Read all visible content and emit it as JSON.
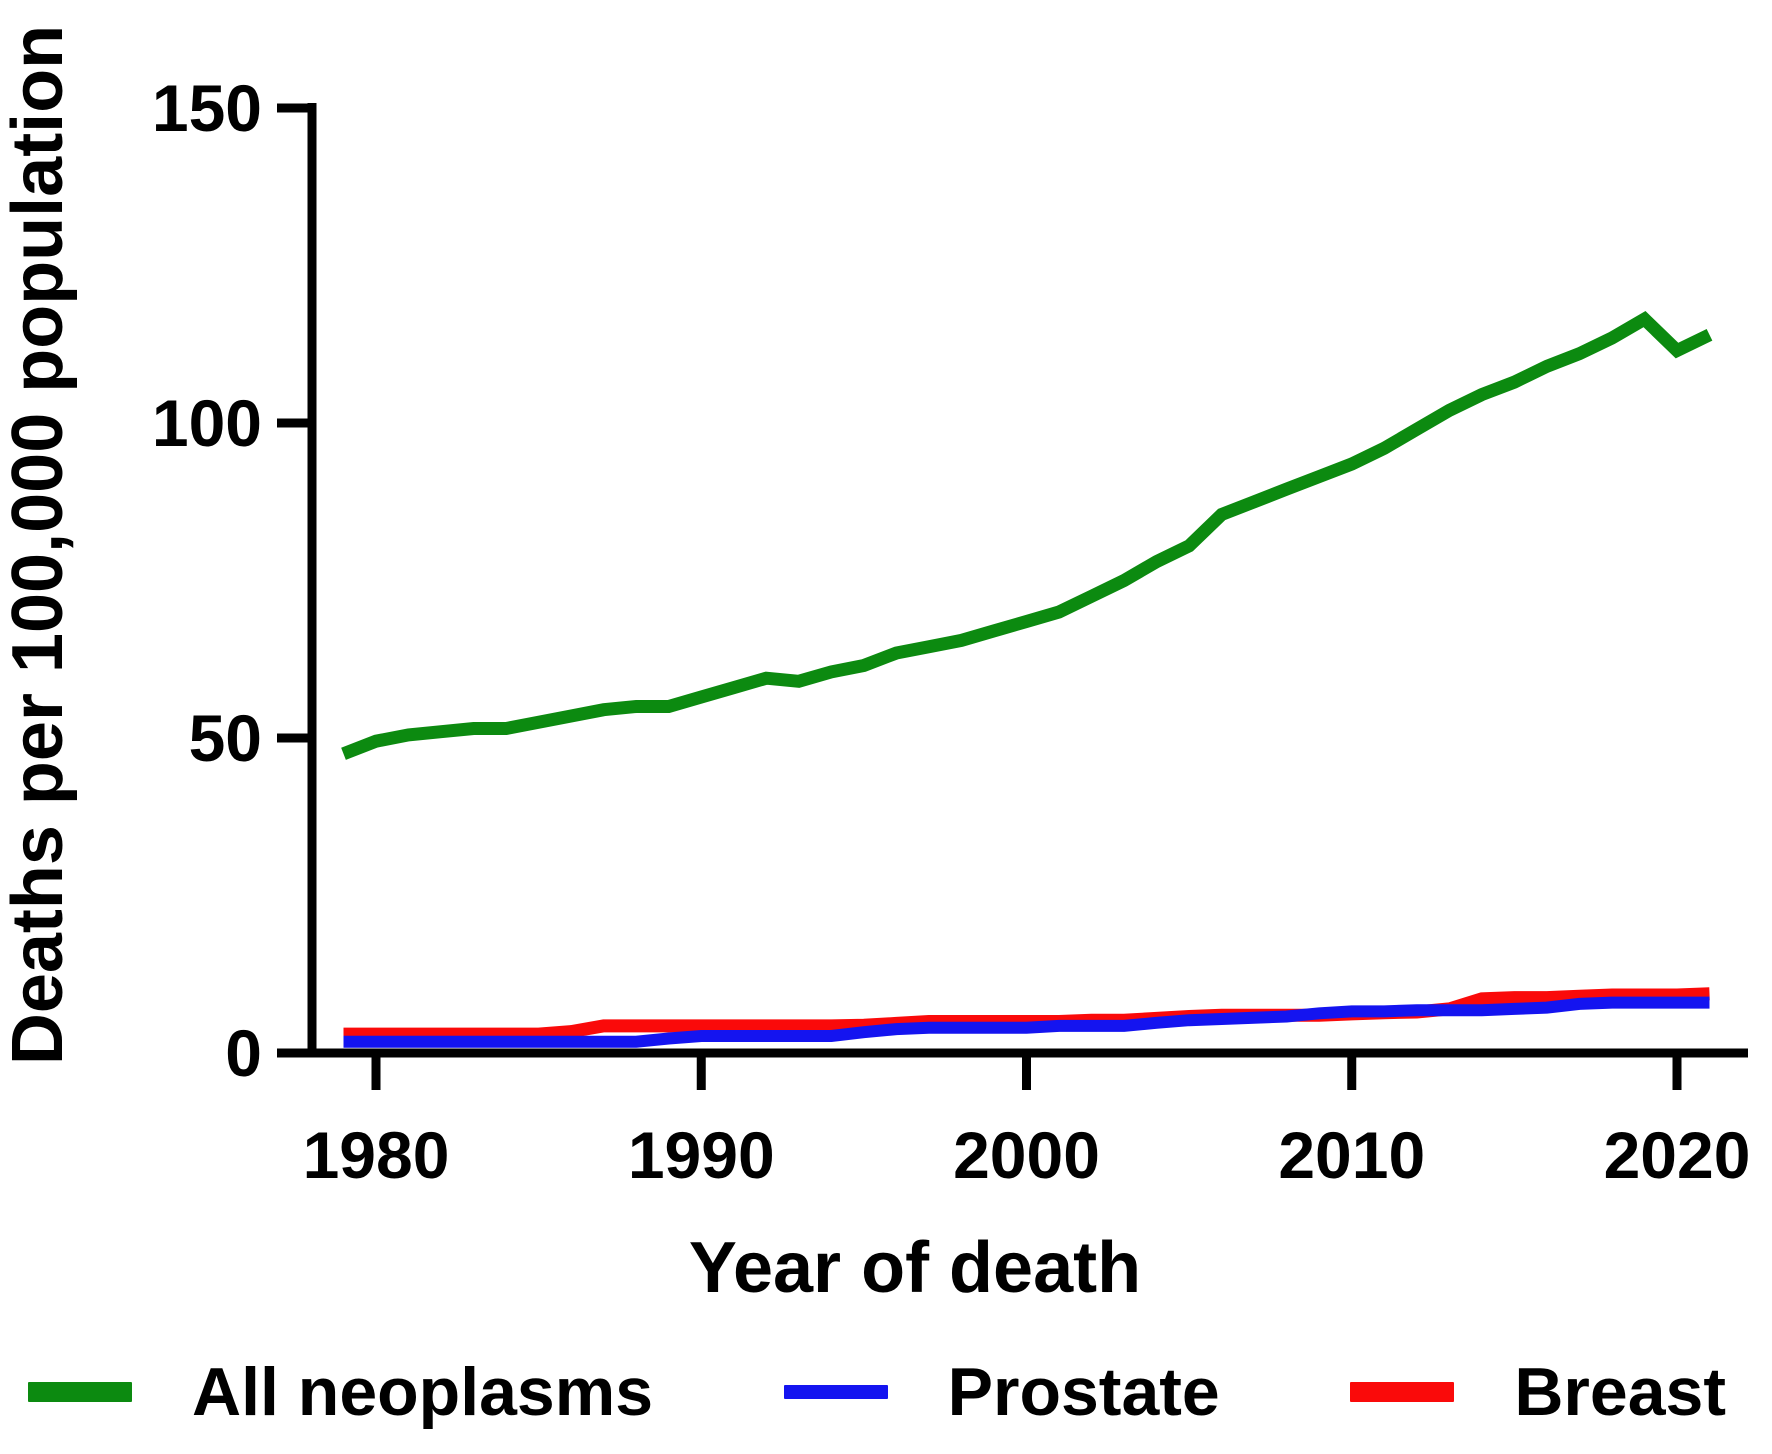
{
  "figure": {
    "background": "#ffffff",
    "text_color": "#000000",
    "axis_color": "#000000"
  },
  "chart_data": {
    "type": "line",
    "title": "",
    "xlabel": "Year of death",
    "ylabel": "Deaths per 100,000 population",
    "x_ticks": [
      "1980",
      "1990",
      "2000",
      "2010",
      "2020"
    ],
    "x_tick_years": [
      1980,
      1990,
      2000,
      2010,
      2020
    ],
    "y_ticks": [
      "0",
      "50",
      "100",
      "150"
    ],
    "y_tick_values": [
      0,
      50,
      100,
      150
    ],
    "xlim": [
      1979,
      2022
    ],
    "ylim": [
      0,
      150
    ],
    "grid": false,
    "legend_position": "bottom",
    "x": [
      1979,
      1980,
      1981,
      1982,
      1983,
      1984,
      1985,
      1986,
      1987,
      1988,
      1989,
      1990,
      1991,
      1992,
      1993,
      1994,
      1995,
      1996,
      1997,
      1998,
      1999,
      2000,
      2001,
      2002,
      2003,
      2004,
      2005,
      2006,
      2007,
      2008,
      2009,
      2010,
      2011,
      2012,
      2013,
      2014,
      2015,
      2016,
      2017,
      2018,
      2019,
      2020,
      2021
    ],
    "series": [
      {
        "key": "all-neoplasms",
        "name": "All neoplasms",
        "color": "#0C8A10",
        "stroke_width": 13,
        "values": [
          47.5,
          49.5,
          50.5,
          51,
          51.5,
          51.5,
          52.5,
          53.5,
          54.5,
          55,
          55,
          56.5,
          58,
          59.5,
          59,
          60.5,
          61.5,
          63.5,
          64.5,
          65.5,
          67,
          68.5,
          70,
          72.5,
          75,
          78,
          80.5,
          85.5,
          87.5,
          89.5,
          91.5,
          93.5,
          96,
          99,
          102,
          104.5,
          106.5,
          109,
          111,
          113.5,
          116.5,
          111.5,
          114
        ]
      },
      {
        "key": "prostate",
        "name": "Prostate",
        "color": "#1414F0",
        "stroke_width": 12,
        "values": [
          1.8,
          1.8,
          1.8,
          1.8,
          1.8,
          1.8,
          1.8,
          1.8,
          1.8,
          1.8,
          2.3,
          2.7,
          2.7,
          2.7,
          2.7,
          2.7,
          3.3,
          3.8,
          4,
          4,
          4,
          4,
          4.3,
          4.3,
          4.3,
          4.8,
          5.2,
          5.4,
          5.6,
          5.8,
          6.3,
          6.6,
          6.6,
          6.8,
          6.8,
          6.8,
          7,
          7.2,
          7.8,
          8,
          8,
          8,
          8
        ]
      },
      {
        "key": "breast",
        "name": "Breast",
        "color": "#FA0A0A",
        "stroke_width": 13,
        "values": [
          3,
          3,
          3,
          3,
          3,
          3,
          3,
          3.4,
          4.3,
          4.3,
          4.3,
          4.3,
          4.3,
          4.3,
          4.3,
          4.3,
          4.4,
          4.7,
          5,
          5,
          5,
          5,
          5,
          5.2,
          5.2,
          5.5,
          5.8,
          6,
          6,
          6,
          6,
          6.2,
          6.4,
          6.5,
          7,
          8.6,
          8.8,
          8.8,
          9,
          9.2,
          9.2,
          9.2,
          9.4
        ]
      }
    ]
  },
  "legend": {
    "items": [
      {
        "label": "All neoplasms",
        "color": "#0C8A10",
        "swatch_height": 20
      },
      {
        "label": "Prostate",
        "color": "#1414F0",
        "swatch_height": 14
      },
      {
        "label": "Breast",
        "color": "#FA0A0A",
        "swatch_height": 20
      }
    ]
  }
}
